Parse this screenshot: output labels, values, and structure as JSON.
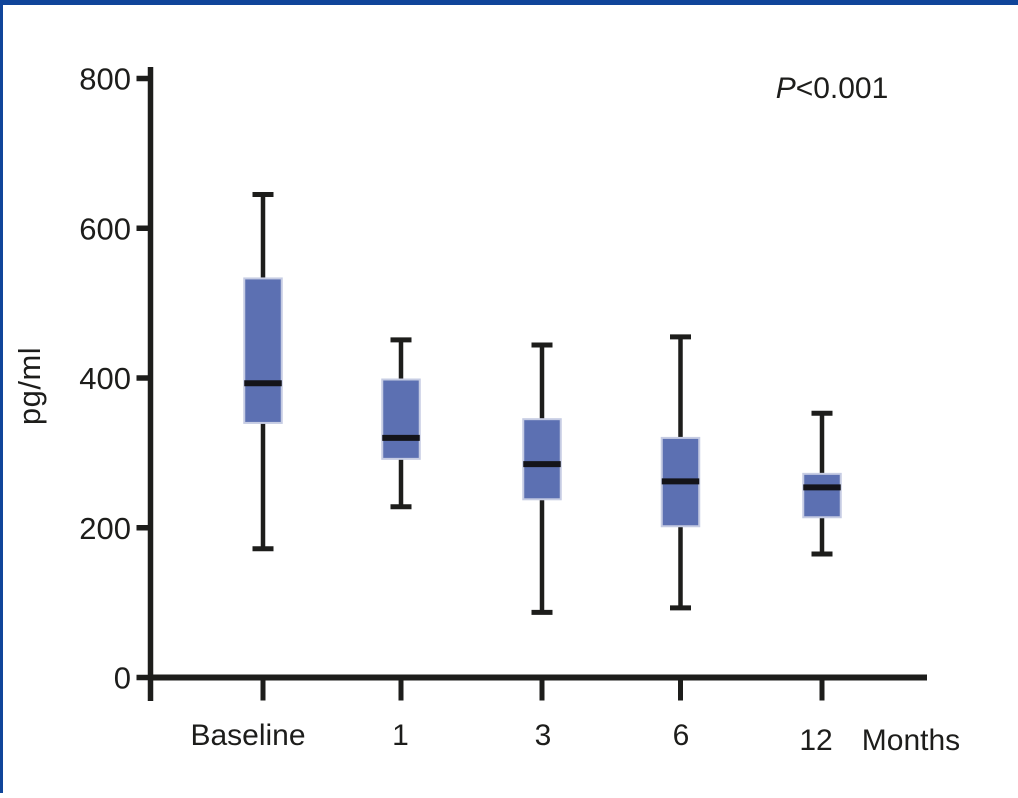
{
  "figure": {
    "y_axis_label": "pg/ml",
    "annotation_italic": "P",
    "annotation_rest": "<0.001"
  },
  "chart_data": {
    "type": "box",
    "title": "",
    "ylabel": "pg/ml",
    "x_unit_label": "Months",
    "annotation": "P<0.001",
    "grid": false,
    "ylim": [
      0,
      800
    ],
    "y_ticks": [
      0,
      200,
      400,
      600,
      800
    ],
    "categories": [
      "Baseline",
      "1",
      "3",
      "6",
      "12"
    ],
    "series": [
      {
        "category": "Baseline",
        "whisker_low": 172,
        "q1": 340,
        "median": 393,
        "q3": 533,
        "whisker_high": 645
      },
      {
        "category": "1",
        "whisker_low": 228,
        "q1": 292,
        "median": 320,
        "q3": 398,
        "whisker_high": 451
      },
      {
        "category": "3",
        "whisker_low": 87,
        "q1": 238,
        "median": 285,
        "q3": 345,
        "whisker_high": 444
      },
      {
        "category": "6",
        "whisker_low": 93,
        "q1": 202,
        "median": 262,
        "q3": 320,
        "whisker_high": 455
      },
      {
        "category": "12",
        "whisker_low": 165,
        "q1": 214,
        "median": 254,
        "q3": 272,
        "whisker_high": 353
      }
    ],
    "colors": {
      "box_fill": "#5c70b2",
      "box_border": "#c6cce3",
      "line": "#1d1d1b",
      "median": "#14141a",
      "frame": "#10459a",
      "background": "#ffffff"
    }
  }
}
